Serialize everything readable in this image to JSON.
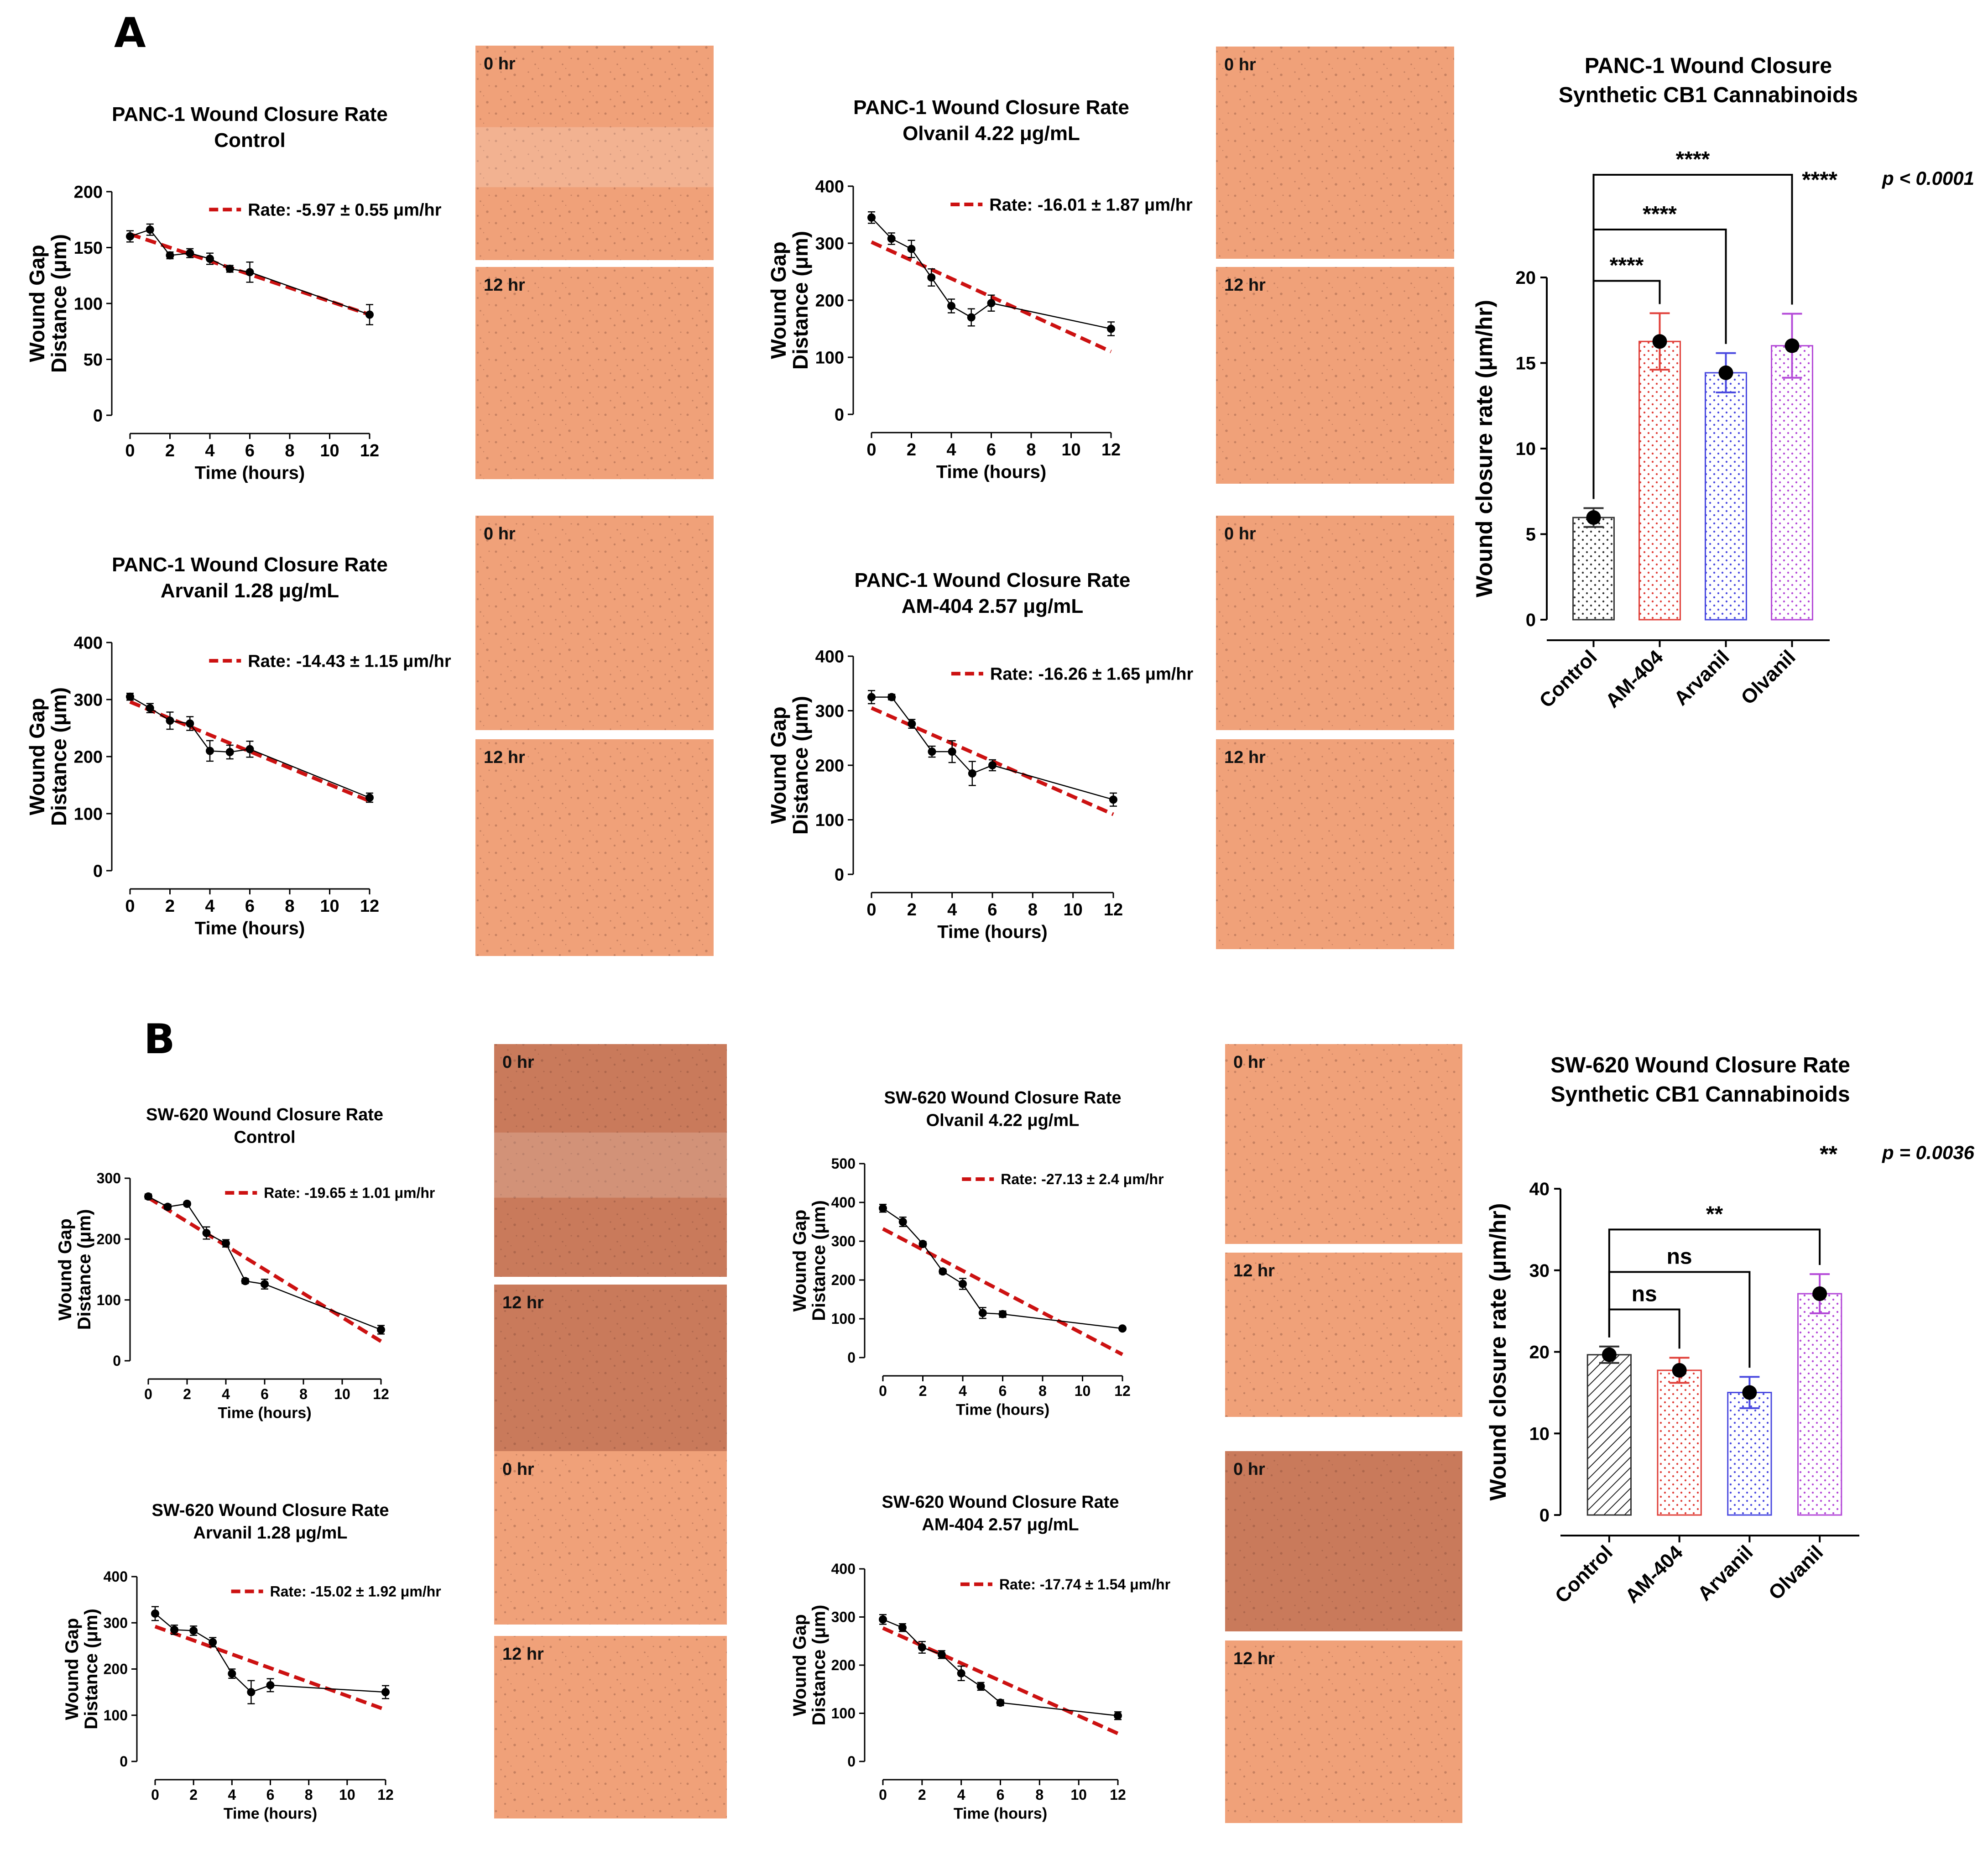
{
  "panel_labels": {
    "a": "A",
    "b": "B"
  },
  "colors": {
    "regression": "#cc1111",
    "control": "#333333",
    "am404": "#e0403a",
    "arvanil": "#4a4ae0",
    "olvanil": "#b44ad8",
    "micrograph_light": "#f0a179",
    "micrograph_dark": "#c97a5b"
  },
  "micrograph_labels": {
    "t0": "0 hr",
    "t12": "12 hr"
  },
  "chart_data": [
    {
      "id": "panc-control",
      "type": "line",
      "title": [
        "PANC-1 Wound Closure Rate",
        "Control"
      ],
      "xlabel": "Time (hours)",
      "ylabel": [
        "Wound Gap",
        "Distance (μm)"
      ],
      "xlim": [
        0,
        12
      ],
      "ylim": [
        0,
        200
      ],
      "xticks": [
        0,
        2,
        4,
        6,
        8,
        10,
        12
      ],
      "yticks": [
        0,
        50,
        100,
        150,
        200
      ],
      "x": [
        0,
        1,
        2,
        3,
        4,
        5,
        6,
        12
      ],
      "y": [
        160,
        166,
        143,
        145,
        140,
        131,
        128,
        90
      ],
      "err": [
        5,
        5,
        3,
        4,
        5,
        3,
        9,
        9
      ],
      "fit": {
        "x": [
          0,
          12
        ],
        "y": [
          162,
          90
        ]
      },
      "legend": "Rate: -5.97 ± 0.55 μm/hr"
    },
    {
      "id": "panc-olvanil",
      "type": "line",
      "title": [
        "PANC-1 Wound Closure Rate",
        "Olvanil 4.22 μg/mL"
      ],
      "xlabel": "Time (hours)",
      "ylabel": [
        "Wound Gap",
        "Distance (μm)"
      ],
      "xlim": [
        0,
        12
      ],
      "ylim": [
        0,
        400
      ],
      "xticks": [
        0,
        2,
        4,
        6,
        8,
        10,
        12
      ],
      "yticks": [
        0,
        100,
        200,
        300,
        400
      ],
      "x": [
        0,
        1,
        2,
        3,
        4,
        5,
        6,
        12
      ],
      "y": [
        345,
        308,
        290,
        240,
        190,
        170,
        195,
        150
      ],
      "err": [
        10,
        10,
        15,
        15,
        12,
        15,
        14,
        12
      ],
      "fit": {
        "x": [
          0,
          12
        ],
        "y": [
          302,
          110
        ]
      },
      "legend": "Rate: -16.01 ± 1.87 μm/hr"
    },
    {
      "id": "panc-arvanil",
      "type": "line",
      "title": [
        "PANC-1 Wound Closure Rate",
        "Arvanil 1.28 μg/mL"
      ],
      "xlabel": "Time (hours)",
      "ylabel": [
        "Wound Gap",
        "Distance (μm)"
      ],
      "xlim": [
        0,
        12
      ],
      "ylim": [
        0,
        400
      ],
      "xticks": [
        0,
        2,
        4,
        6,
        8,
        10,
        12
      ],
      "yticks": [
        0,
        100,
        200,
        300,
        400
      ],
      "x": [
        0,
        1,
        2,
        3,
        4,
        5,
        6,
        12
      ],
      "y": [
        305,
        285,
        263,
        258,
        210,
        208,
        213,
        128
      ],
      "err": [
        6,
        8,
        15,
        12,
        18,
        12,
        14,
        8
      ],
      "fit": {
        "x": [
          0,
          12
        ],
        "y": [
          296,
          122
        ]
      },
      "legend": "Rate: -14.43 ± 1.15 μm/hr"
    },
    {
      "id": "panc-am404",
      "type": "line",
      "title": [
        "PANC-1 Wound Closure Rate",
        "AM-404 2.57 μg/mL"
      ],
      "xlabel": "Time (hours)",
      "ylabel": [
        "Wound Gap",
        "Distance (μm)"
      ],
      "xlim": [
        0,
        12
      ],
      "ylim": [
        0,
        400
      ],
      "xticks": [
        0,
        2,
        4,
        6,
        8,
        10,
        12
      ],
      "yticks": [
        0,
        100,
        200,
        300,
        400
      ],
      "x": [
        0,
        1,
        2,
        3,
        4,
        5,
        6,
        12
      ],
      "y": [
        325,
        325,
        276,
        225,
        225,
        185,
        200,
        137
      ],
      "err": [
        12,
        5,
        8,
        10,
        20,
        22,
        10,
        12
      ],
      "fit": {
        "x": [
          0,
          12
        ],
        "y": [
          305,
          110
        ]
      },
      "legend": "Rate: -16.26 ± 1.65 μm/hr"
    },
    {
      "id": "panc-bar",
      "type": "bar",
      "title": [
        "PANC-1 Wound Closure",
        "Synthetic CB1 Cannabinoids"
      ],
      "xlabel": "",
      "ylabel": "Wound closure rate (μm/hr)",
      "ylim": [
        0,
        20
      ],
      "yticks": [
        0,
        5,
        10,
        15,
        20
      ],
      "categories": [
        "Control",
        "AM-404",
        "Arvanil",
        "Olvanil"
      ],
      "values": [
        5.97,
        16.26,
        14.43,
        16.01
      ],
      "errors": [
        0.55,
        1.65,
        1.15,
        1.87
      ],
      "colors": [
        "#333333",
        "#e0403a",
        "#4a4ae0",
        "#b44ad8"
      ],
      "patterns": [
        "dots",
        "dots",
        "dots",
        "dots"
      ],
      "brackets": [
        {
          "from": 0,
          "to": 1,
          "label": "****",
          "y": 19.8
        },
        {
          "from": 0,
          "to": 2,
          "label": "****",
          "y": 22.8
        },
        {
          "from": 0,
          "to": 3,
          "label": "****",
          "y": 26.0
        }
      ],
      "note": {
        "stars": "****",
        "text": "p < 0.0001"
      }
    },
    {
      "id": "sw-control",
      "type": "line",
      "title": [
        "SW-620 Wound Closure Rate",
        "Control"
      ],
      "xlabel": "Time (hours)",
      "ylabel": [
        "Wound Gap",
        "Distance (μm)"
      ],
      "xlim": [
        0,
        12
      ],
      "ylim": [
        0,
        300
      ],
      "xticks": [
        0,
        2,
        4,
        6,
        8,
        10,
        12
      ],
      "yticks": [
        0,
        100,
        200,
        300
      ],
      "x": [
        0,
        1,
        2,
        3,
        4,
        5,
        6,
        12
      ],
      "y": [
        270,
        253,
        258,
        210,
        193,
        131,
        126,
        51
      ],
      "err": [
        4,
        4,
        3,
        10,
        6,
        4,
        8,
        7
      ],
      "fit": {
        "x": [
          0,
          12
        ],
        "y": [
          268,
          32
        ]
      },
      "legend": "Rate: -19.65 ± 1.01 μm/hr"
    },
    {
      "id": "sw-olvanil",
      "type": "line",
      "title": [
        "SW-620 Wound Closure Rate",
        "Olvanil 4.22 μg/mL"
      ],
      "xlabel": "Time (hours)",
      "ylabel": [
        "Wound Gap",
        "Distance (μm)"
      ],
      "xlim": [
        0,
        12
      ],
      "ylim": [
        0,
        500
      ],
      "xticks": [
        0,
        2,
        4,
        6,
        8,
        10,
        12
      ],
      "yticks": [
        0,
        100,
        200,
        300,
        400,
        500
      ],
      "x": [
        0,
        1,
        2,
        3,
        4,
        5,
        6,
        12
      ],
      "y": [
        385,
        350,
        293,
        222,
        190,
        115,
        112,
        75
      ],
      "err": [
        10,
        12,
        6,
        6,
        14,
        14,
        8,
        4
      ],
      "fit": {
        "x": [
          0,
          12
        ],
        "y": [
          332,
          8
        ]
      },
      "legend": "Rate: -27.13 ± 2.4 μm/hr"
    },
    {
      "id": "sw-arvanil",
      "type": "line",
      "title": [
        "SW-620 Wound Closure Rate",
        "Arvanil 1.28 μg/mL"
      ],
      "xlabel": "Time (hours)",
      "ylabel": [
        "Wound Gap",
        "Distance (μm)"
      ],
      "xlim": [
        0,
        12
      ],
      "ylim": [
        0,
        400
      ],
      "xticks": [
        0,
        2,
        4,
        6,
        8,
        10,
        12
      ],
      "yticks": [
        0,
        100,
        200,
        300,
        400
      ],
      "x": [
        0,
        1,
        2,
        3,
        4,
        5,
        6,
        12
      ],
      "y": [
        320,
        285,
        283,
        258,
        190,
        150,
        165,
        150
      ],
      "err": [
        15,
        10,
        10,
        10,
        10,
        25,
        14,
        14
      ],
      "fit": {
        "x": [
          0,
          12
        ],
        "y": [
          292,
          112
        ]
      },
      "legend": "Rate: -15.02 ± 1.92 μm/hr"
    },
    {
      "id": "sw-am404",
      "type": "line",
      "title": [
        "SW-620 Wound Closure Rate",
        "AM-404 2.57 μg/mL"
      ],
      "xlabel": "Time (hours)",
      "ylabel": [
        "Wound Gap",
        "Distance (μm)"
      ],
      "xlim": [
        0,
        12
      ],
      "ylim": [
        0,
        400
      ],
      "xticks": [
        0,
        2,
        4,
        6,
        8,
        10,
        12
      ],
      "yticks": [
        0,
        100,
        200,
        300,
        400
      ],
      "x": [
        0,
        1,
        2,
        3,
        4,
        5,
        6,
        12
      ],
      "y": [
        295,
        278,
        237,
        222,
        183,
        156,
        122,
        95
      ],
      "err": [
        10,
        8,
        12,
        8,
        15,
        8,
        6,
        8
      ],
      "fit": {
        "x": [
          0,
          12
        ],
        "y": [
          277,
          58
        ]
      },
      "legend": "Rate: -17.74 ± 1.54 μm/hr"
    },
    {
      "id": "sw-bar",
      "type": "bar",
      "title": [
        "SW-620 Wound Closure Rate",
        "Synthetic CB1 Cannabinoids"
      ],
      "xlabel": "",
      "ylabel": "Wound closure rate (μm/hr)",
      "ylim": [
        0,
        40
      ],
      "yticks": [
        0,
        10,
        20,
        30,
        40
      ],
      "categories": [
        "Control",
        "AM-404",
        "Arvanil",
        "Olvanil"
      ],
      "values": [
        19.65,
        17.74,
        15.02,
        27.13
      ],
      "errors": [
        1.01,
        1.54,
        1.92,
        2.4
      ],
      "colors": [
        "#333333",
        "#e0403a",
        "#4a4ae0",
        "#b44ad8"
      ],
      "patterns": [
        "hatch",
        "dots",
        "dots",
        "dots"
      ],
      "brackets": [
        {
          "from": 0,
          "to": 1,
          "label": "ns",
          "y": 25.2
        },
        {
          "from": 0,
          "to": 2,
          "label": "ns",
          "y": 29.8
        },
        {
          "from": 0,
          "to": 3,
          "label": "**",
          "y": 35.0
        }
      ],
      "note": {
        "stars": "**",
        "text": "p = 0.0036"
      }
    }
  ]
}
